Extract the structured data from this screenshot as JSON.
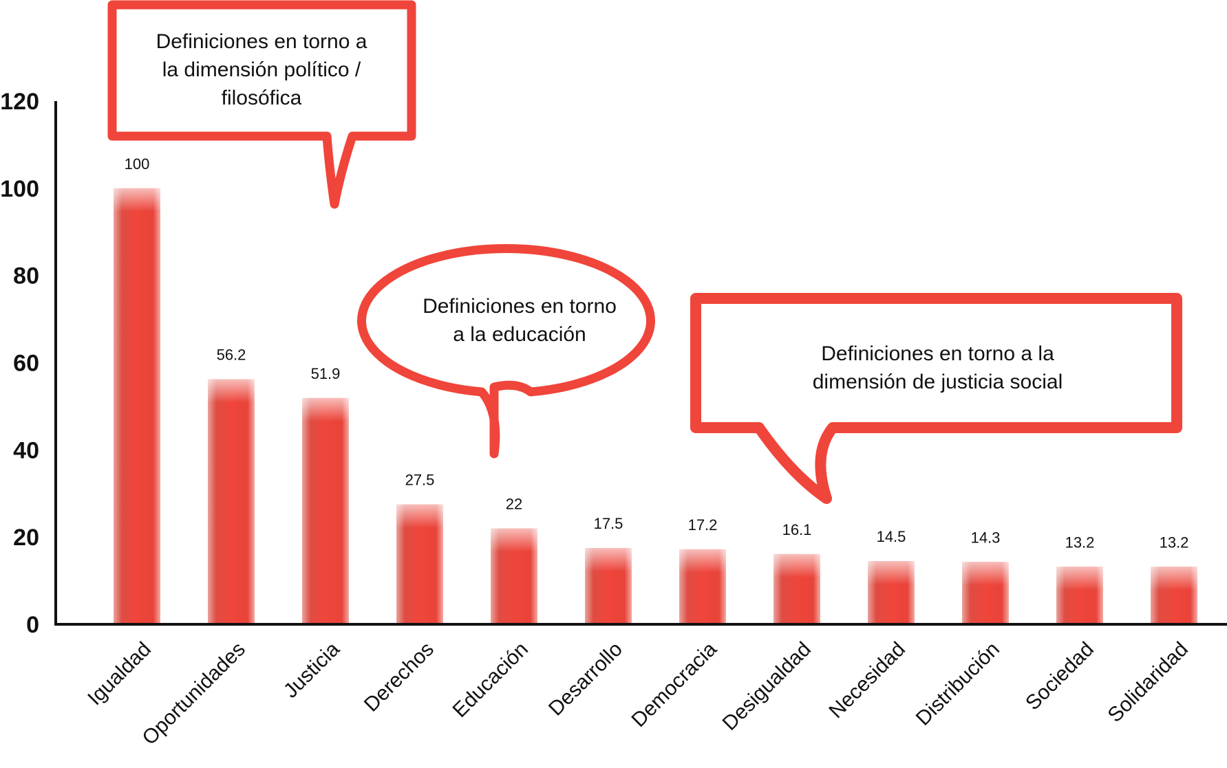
{
  "chart_data": {
    "type": "bar",
    "categories": [
      "Igualdad",
      "Oportunidades",
      "Justicia",
      "Derechos",
      "Educación",
      "Desarrollo",
      "Democracia",
      "Desigualdad",
      "Necesidad",
      "Distribución",
      "Sociedad",
      "Solidaridad"
    ],
    "values": [
      100,
      56.2,
      51.9,
      27.5,
      22,
      17.5,
      17.2,
      16.1,
      14.5,
      14.3,
      13.2,
      13.2
    ],
    "value_labels": [
      "100",
      "56.2",
      "51.9",
      "27.5",
      "22",
      "17.5",
      "17.2",
      "16.1",
      "14.5",
      "14.3",
      "13.2",
      "13.2"
    ],
    "ylim": [
      0,
      120
    ],
    "yticks": [
      0,
      20,
      40,
      60,
      80,
      100,
      120
    ],
    "ytick_labels": [
      "0",
      "20",
      "40",
      "60",
      "80",
      "100",
      "120"
    ],
    "grid": false,
    "bar_color": "#f0453a",
    "annotations": [
      {
        "shape": "rectangle",
        "text_lines": [
          "Definiciones en torno a",
          "la dimensión político /",
          "filosófica"
        ]
      },
      {
        "shape": "ellipse",
        "text_lines": [
          "Definiciones en torno",
          "a la educación"
        ]
      },
      {
        "shape": "rectangle",
        "text_lines": [
          "Definiciones en torno a la",
          "dimensión de justicia social"
        ]
      }
    ]
  },
  "colors": {
    "accent": "#f0453a",
    "axis": "#111111"
  }
}
